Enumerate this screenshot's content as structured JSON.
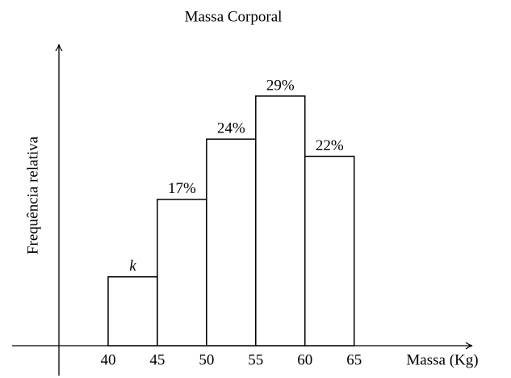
{
  "chart_data": {
    "type": "histogram",
    "title": "Massa Corporal",
    "x_label": "Massa (Kg)",
    "y_label": "Frequência relativa",
    "bins": [
      40,
      45,
      50,
      55,
      60,
      65
    ],
    "values": [
      8,
      17,
      24,
      29,
      22
    ],
    "value_labels": [
      "k",
      "17%",
      "24%",
      "29%",
      "22%"
    ],
    "color": "#ffffff",
    "xlim": [
      35,
      77
    ],
    "ylim": [
      0,
      35
    ],
    "xticks": [
      40,
      45,
      50,
      55,
      60,
      65
    ],
    "grid": false
  }
}
